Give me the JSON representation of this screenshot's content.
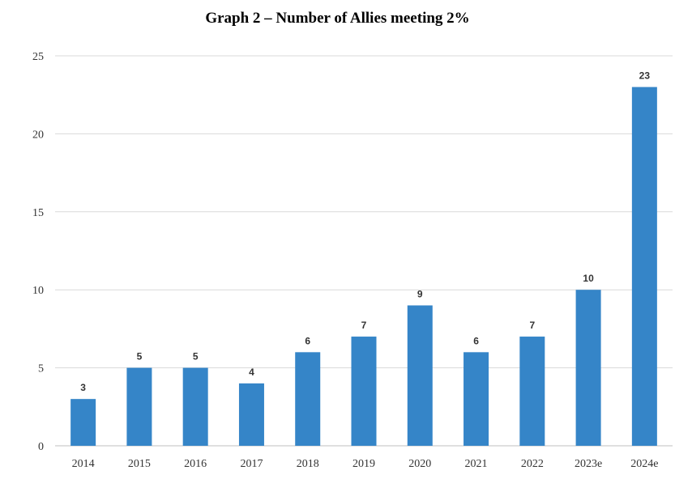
{
  "chart_data": {
    "type": "bar",
    "title": "Graph 2 – Number of Allies meeting 2%",
    "xlabel": "",
    "ylabel": "",
    "categories": [
      "2014",
      "2015",
      "2016",
      "2017",
      "2018",
      "2019",
      "2020",
      "2021",
      "2022",
      "2023e",
      "2024e"
    ],
    "values": [
      3,
      5,
      5,
      4,
      6,
      7,
      9,
      6,
      7,
      10,
      23
    ],
    "ylim": [
      0,
      25
    ],
    "yticks": [
      0,
      5,
      10,
      15,
      20,
      25
    ],
    "grid": true,
    "legend": "none",
    "data_labels": true,
    "bar_color": "#3585c8"
  }
}
